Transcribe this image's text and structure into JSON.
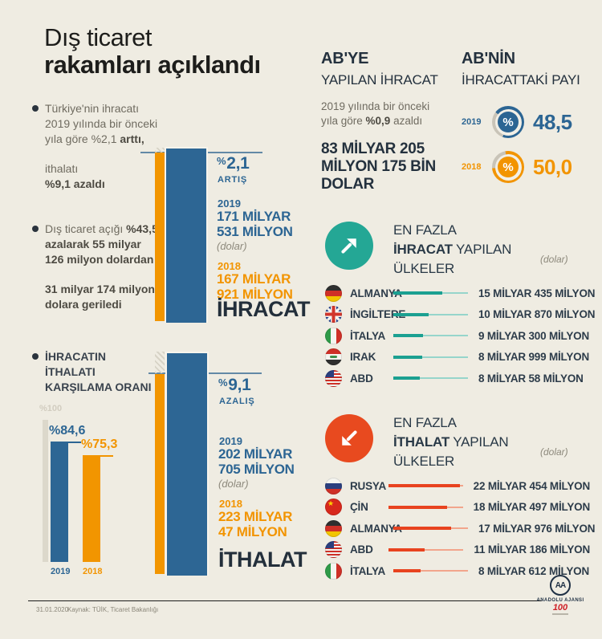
{
  "title": {
    "line1": "Dış ticaret",
    "line2": "rakamları açıklandı"
  },
  "bullets": {
    "b1_p1": "Türkiye'nin ihracatı 2019 yılında bir önceki yıla göre %2,1 ",
    "b1_b1": "arttı,",
    "b1_p2": "ithalatı",
    "b1_b2": "%9,1 azaldı",
    "b2_p1": "Dış ticaret açığı ",
    "b2_b1": "%43,5 azalarak 55 milyar 126 milyon dolardan",
    "b2_b2": "31 milyar 174 milyon dolara geriledi",
    "b3": "İHRACATIN İTHALATI KARŞILAMA ORANI"
  },
  "coverage_chart": {
    "axis_label": "%100",
    "bars": [
      {
        "year": "2019",
        "label": "%84,6",
        "value": 84.6,
        "theme": "blue"
      },
      {
        "year": "2018",
        "label": "%75,3",
        "value": 75.3,
        "theme": "orange"
      }
    ]
  },
  "export_chart": {
    "pct_symbol": "%",
    "pct": "2,1",
    "direction": "ARTIŞ",
    "year_new": "2019",
    "new_l1": "171 MİLYAR",
    "new_l2": "531 MİLYON",
    "unit": "(dolar)",
    "year_old": "2018",
    "old_l1": "167 MİLYAR",
    "old_l2": "921 MİLYON",
    "title": "İHRACAT"
  },
  "import_chart": {
    "pct_symbol": "%",
    "pct": "9,1",
    "direction": "AZALIŞ",
    "year_new": "2019",
    "new_l1": "202 MİLYAR",
    "new_l2": "705 MİLYON",
    "unit": "(dolar)",
    "year_old": "2018",
    "old_l1": "223 MİLYAR",
    "old_l2": "47 MİLYON",
    "title": "İTHALAT"
  },
  "eu_export": {
    "heading_bold": "AB'YE",
    "heading_rest": "YAPILAN İHRACAT",
    "note_p1": "2019 yılında bir önceki yıla göre ",
    "note_bold": "%0,9",
    "note_p2": " azaldı",
    "amount": "83 MİLYAR 205 MİLYON 175 BİN DOLAR"
  },
  "eu_share": {
    "heading_bold": "AB'NİN",
    "heading_rest": "İHRACATTAKİ PAYI",
    "rows": [
      {
        "year": "2019",
        "symbol": "%",
        "value": "48,5",
        "theme": "blue"
      },
      {
        "year": "2018",
        "symbol": "%",
        "value": "50,0",
        "theme": "orange"
      }
    ]
  },
  "top_exports": {
    "l1": "EN FAZLA",
    "l2_bold": "İHRACAT",
    "l2_rest": " YAPILAN",
    "l3": "ÜLKELER",
    "unit": "(dolar)",
    "rows": [
      {
        "flag": "germany",
        "country": "ALMANYA",
        "value": "15 MİLYAR 435 MİLYON",
        "pct": 66
      },
      {
        "flag": "uk",
        "country": "İNGİLTERE",
        "value": "10 MİLYAR 870 MİLYON",
        "pct": 47
      },
      {
        "flag": "italy",
        "country": "İTALYA",
        "value": "9 MİLYAR 300 MİLYON",
        "pct": 40
      },
      {
        "flag": "iraq",
        "country": "IRAK",
        "value": "8 MİLYAR 999 MİLYON",
        "pct": 39
      },
      {
        "flag": "usa",
        "country": "ABD",
        "value": "8 MİLYAR 58 MİLYON",
        "pct": 35
      }
    ]
  },
  "top_imports": {
    "l1": "EN FAZLA",
    "l2_bold": "İTHALAT",
    "l2_rest": " YAPILAN",
    "l3": "ÜLKELER",
    "unit": "(dolar)",
    "rows": [
      {
        "flag": "russia",
        "country": "RUSYA",
        "value": "22 MİLYAR 454 MİLYON",
        "pct": 96
      },
      {
        "flag": "china",
        "country": "ÇİN",
        "value": "18 MİLYAR 497 MİLYON",
        "pct": 79
      },
      {
        "flag": "germany",
        "country": "ALMANYA",
        "value": "17 MİLYAR 976 MİLYON",
        "pct": 77
      },
      {
        "flag": "usa",
        "country": "ABD",
        "value": "11 MİLYAR 186 MİLYON",
        "pct": 48
      },
      {
        "flag": "italy",
        "country": "İTALYA",
        "value": "8 MİLYAR 612 MİLYON",
        "pct": 37
      }
    ]
  },
  "footer": {
    "date": "31.01.2020",
    "source": "Kaynak: TÜİK, Ticaret Bakanlığı",
    "agency_abbr": "AA",
    "agency": "ANADOLU AJANSI",
    "centenary": "100"
  },
  "colors": {
    "background": "#efece2",
    "blue": "#2c6593",
    "orange": "#f29400",
    "teal": "#24a795",
    "red": "#e84a1f",
    "navy": "#233140"
  },
  "chart_data": [
    {
      "type": "bar",
      "title": "İHRACAT",
      "unit": "milyar dolar",
      "categories": [
        "2018",
        "2019"
      ],
      "values": [
        167.921,
        171.531
      ],
      "annotation": "%2,1 ARTIŞ"
    },
    {
      "type": "bar",
      "title": "İTHALAT",
      "unit": "milyar dolar",
      "categories": [
        "2018",
        "2019"
      ],
      "values": [
        223.047,
        202.705
      ],
      "annotation": "%9,1 AZALIŞ"
    },
    {
      "type": "bar",
      "title": "İHRACATIN İTHALATI KARŞILAMA ORANI",
      "unit": "%",
      "categories": [
        "2019",
        "2018"
      ],
      "values": [
        84.6,
        75.3
      ],
      "ylim": [
        0,
        100
      ]
    },
    {
      "type": "pie",
      "title": "AB'NİN İHRACATTAKİ PAYI",
      "unit": "%",
      "categories": [
        "2019",
        "2018"
      ],
      "values": [
        48.5,
        50.0
      ]
    },
    {
      "type": "bar",
      "title": "EN FAZLA İHRACAT YAPILAN ÜLKELER",
      "unit": "milyar dolar",
      "categories": [
        "ALMANYA",
        "İNGİLTERE",
        "İTALYA",
        "IRAK",
        "ABD"
      ],
      "values": [
        15.435,
        10.87,
        9.3,
        8.999,
        8.058
      ]
    },
    {
      "type": "bar",
      "title": "EN FAZLA İTHALAT YAPILAN ÜLKELER",
      "unit": "milyar dolar",
      "categories": [
        "RUSYA",
        "ÇİN",
        "ALMANYA",
        "ABD",
        "İTALYA"
      ],
      "values": [
        22.454,
        18.497,
        17.976,
        11.186,
        8.612
      ]
    }
  ]
}
